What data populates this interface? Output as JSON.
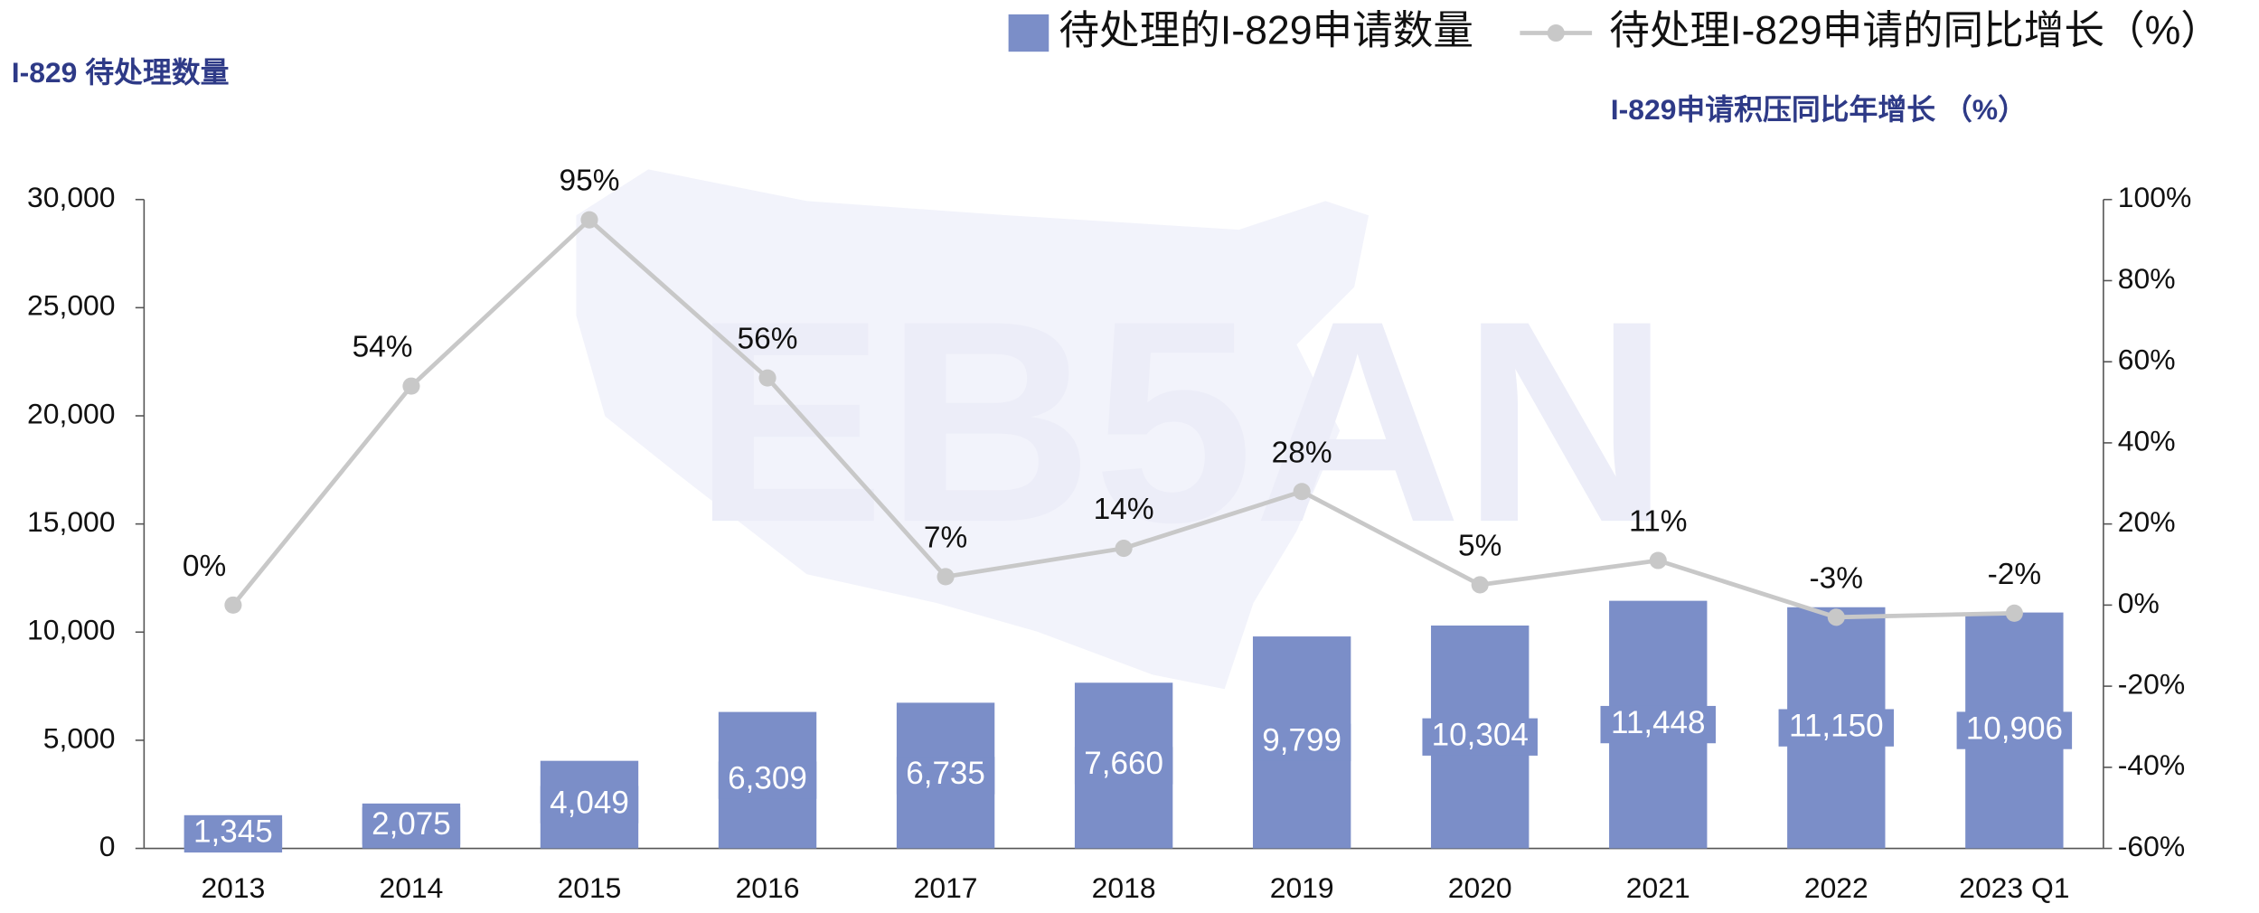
{
  "chart_data": {
    "type": "bar_line",
    "watermark": "EB5AN",
    "y_label": "I-829 待处理数量",
    "y2_label": "I-829申请积压同比年增长 （%）",
    "categories": [
      "2013",
      "2014",
      "2015",
      "2016",
      "2017",
      "2018",
      "2019",
      "2020",
      "2021",
      "2022",
      "2023 Q1"
    ],
    "series": [
      {
        "name": "待处理的I-829申请数量",
        "type": "bar",
        "color": "#7b8ec8",
        "values": [
          1345,
          2075,
          4049,
          6309,
          6735,
          7660,
          9799,
          10304,
          11448,
          11150,
          10906
        ],
        "value_labels": [
          "1,345",
          "2,075",
          "4,049",
          "6,309",
          "6,735",
          "7,660",
          "9,799",
          "10,304",
          "11,448",
          "11,150",
          "10,906"
        ]
      },
      {
        "name": "待处理I-829申请的同比增长（%）",
        "type": "line",
        "axis": "y2",
        "color": "#c8c8c8",
        "values": [
          0,
          54,
          95,
          56,
          7,
          14,
          28,
          5,
          11,
          -3,
          -2
        ],
        "value_labels": [
          "0%",
          "54%",
          "95%",
          "56%",
          "7%",
          "14%",
          "28%",
          "5%",
          "11%",
          "-3%",
          "-2%"
        ]
      }
    ],
    "ylim": [
      0,
      30000
    ],
    "yticks": [
      0,
      {
        "value": 5000,
        "label": "5,000"
      },
      {
        "value": 10000,
        "label": "10,000"
      },
      {
        "value": 15000,
        "label": "15,000"
      },
      {
        "value": 20000,
        "label": "20,000"
      },
      {
        "value": 25000,
        "label": "25,000"
      },
      {
        "value": 30000,
        "label": "30,000"
      }
    ],
    "y2lim": [
      -60,
      100
    ],
    "y2ticks": [
      {
        "value": -60,
        "label": "-60%"
      },
      {
        "value": -40,
        "label": "-40%"
      },
      {
        "value": -20,
        "label": "-20%"
      },
      {
        "value": 0,
        "label": "0%"
      },
      {
        "value": 20,
        "label": "20%"
      },
      {
        "value": 40,
        "label": "40%"
      },
      {
        "value": 60,
        "label": "60%"
      },
      {
        "value": 80,
        "label": "80%"
      },
      {
        "value": 100,
        "label": "100%"
      }
    ],
    "grid": false
  }
}
